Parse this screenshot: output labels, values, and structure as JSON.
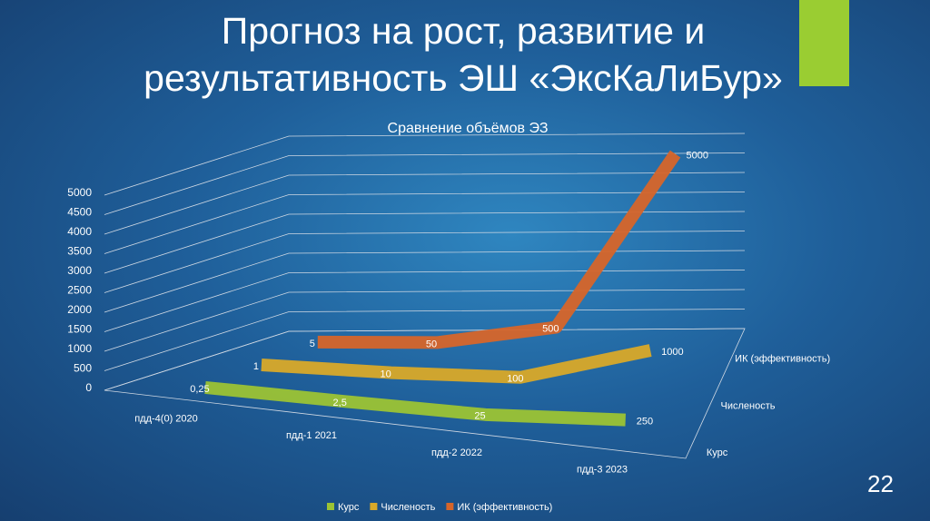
{
  "slide_title": "Прогноз на рост, развитие и результативность ЭШ «ЭксКаЛиБур»",
  "slide_number": "22",
  "chart_data": {
    "type": "line3d",
    "title": "Сравнение объёмов ЭЗ",
    "categories": [
      "пдд-4(0) 2020",
      "пдд-1 2021",
      "пдд-2 2022",
      "пдд-3 2023"
    ],
    "series": [
      {
        "name": "Курс",
        "color": "#9cc334",
        "values": [
          0.25,
          2.5,
          25,
          250
        ],
        "value_labels": [
          "0,25",
          "2,5",
          "25",
          "250"
        ]
      },
      {
        "name": "Численость",
        "color": "#d9a929",
        "values": [
          1,
          10,
          100,
          1000
        ]
      },
      {
        "name": "ИК (эффективность)",
        "color": "#d6652a",
        "values": [
          5,
          50,
          500,
          5000
        ]
      }
    ],
    "ylim": [
      0,
      5000
    ],
    "yticks": [
      0,
      500,
      1000,
      1500,
      2000,
      2500,
      3000,
      3500,
      4000,
      4500,
      5000
    ],
    "grid": true,
    "legend": "bottom"
  }
}
